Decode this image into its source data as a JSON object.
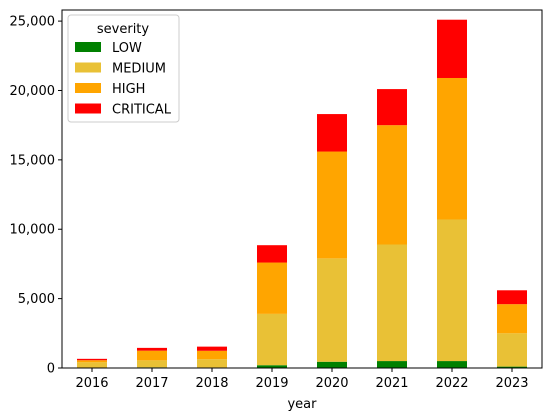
{
  "chart_data": {
    "type": "bar",
    "stacked": true,
    "categories": [
      "2016",
      "2017",
      "2018",
      "2019",
      "2020",
      "2021",
      "2022",
      "2023"
    ],
    "series": [
      {
        "name": "LOW",
        "color": "#008000",
        "values": [
          10,
          50,
          40,
          200,
          450,
          500,
          500,
          100
        ]
      },
      {
        "name": "MEDIUM",
        "color": "#e9c136",
        "values": [
          400,
          500,
          600,
          3700,
          7450,
          8400,
          10200,
          2400
        ]
      },
      {
        "name": "HIGH",
        "color": "#ffa500",
        "values": [
          150,
          700,
          600,
          3700,
          7700,
          8600,
          10200,
          2100
        ]
      },
      {
        "name": "CRITICAL",
        "color": "#ff0000",
        "values": [
          100,
          200,
          300,
          1250,
          2700,
          2600,
          4200,
          1000
        ]
      }
    ],
    "xlabel": "year",
    "ylabel": "",
    "ylim": [
      0,
      25800
    ],
    "yticks": [
      0,
      5000,
      10000,
      15000,
      20000,
      25000
    ],
    "ytick_labels": [
      "0",
      "5,000",
      "10,000",
      "15,000",
      "20,000",
      "25,000"
    ],
    "grid": false,
    "legend": {
      "title": "severity",
      "placement": "top-left"
    }
  }
}
